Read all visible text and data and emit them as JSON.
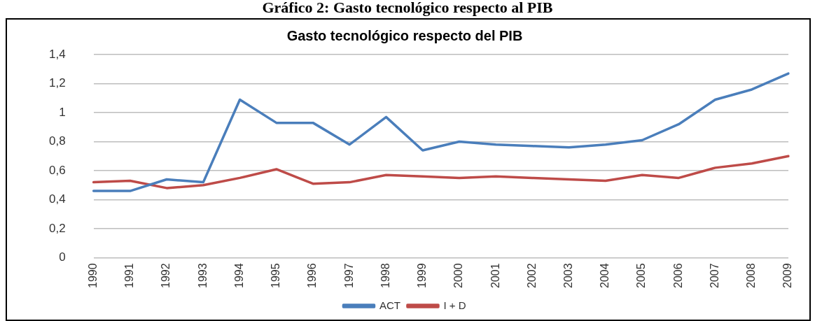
{
  "chart_data": {
    "type": "line",
    "title": "Gráfico 2: Gasto tecnológico respecto al PIB",
    "subtitle": "Gasto tecnológico respecto del PIB",
    "categories": [
      "1990",
      "1991",
      "1992",
      "1993",
      "1994",
      "1995",
      "1996",
      "1997",
      "1998",
      "1999",
      "2000",
      "2001",
      "2002",
      "2003",
      "2004",
      "2005",
      "2006",
      "2007",
      "2008",
      "2009"
    ],
    "series": [
      {
        "name": "ACT",
        "color": "#4a7ebb",
        "values": [
          0.46,
          0.46,
          0.54,
          0.52,
          1.09,
          0.93,
          0.93,
          0.78,
          0.97,
          0.74,
          0.8,
          0.78,
          0.77,
          0.76,
          0.78,
          0.81,
          0.92,
          1.09,
          1.16,
          1.27
        ]
      },
      {
        "name": "I + D",
        "color": "#be4b48",
        "values": [
          0.52,
          0.53,
          0.48,
          0.5,
          0.55,
          0.61,
          0.51,
          0.52,
          0.57,
          0.56,
          0.55,
          0.56,
          0.55,
          0.54,
          0.53,
          0.57,
          0.55,
          0.62,
          0.65,
          0.7
        ]
      }
    ],
    "ylim": [
      0,
      1.4
    ],
    "yticks": [
      {
        "value": 0,
        "label": "0"
      },
      {
        "value": 0.2,
        "label": "0,2"
      },
      {
        "value": 0.4,
        "label": "0,4"
      },
      {
        "value": 0.6,
        "label": "0,6"
      },
      {
        "value": 0.8,
        "label": "0,8"
      },
      {
        "value": 1,
        "label": "1"
      },
      {
        "value": 1.2,
        "label": "1,2"
      },
      {
        "value": 1.4,
        "label": "1,4"
      }
    ],
    "grid": "y",
    "legend": "bottom",
    "marker": "none",
    "line_style": "solid"
  }
}
